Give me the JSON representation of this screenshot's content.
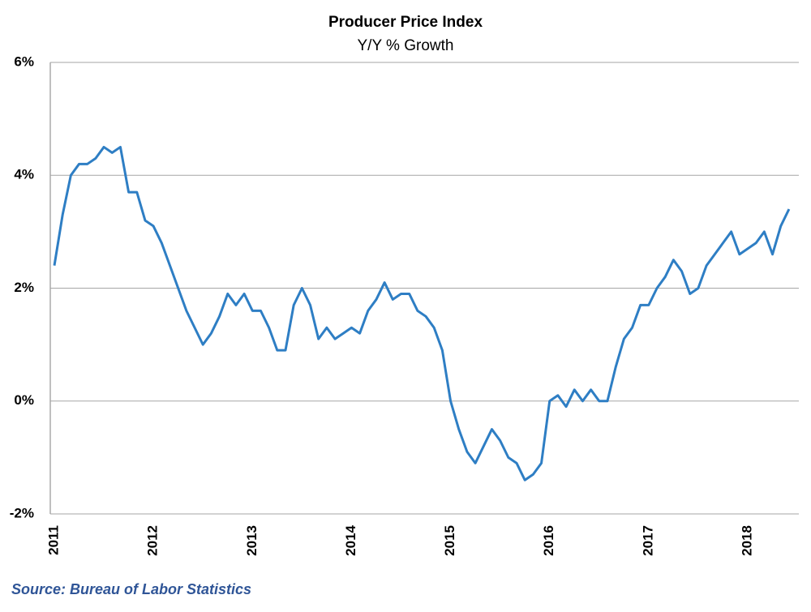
{
  "chart_data": {
    "type": "line",
    "title": "Producer Price Index",
    "subtitle": "Y/Y % Growth",
    "source": "Source: Bureau of Labor Statistics",
    "categories": [
      "2011",
      null,
      null,
      null,
      null,
      null,
      null,
      null,
      null,
      null,
      null,
      null,
      "2012",
      null,
      null,
      null,
      null,
      null,
      null,
      null,
      null,
      null,
      null,
      null,
      "2013",
      null,
      null,
      null,
      null,
      null,
      null,
      null,
      null,
      null,
      null,
      null,
      "2014",
      null,
      null,
      null,
      null,
      null,
      null,
      null,
      null,
      null,
      null,
      null,
      "2015",
      null,
      null,
      null,
      null,
      null,
      null,
      null,
      null,
      null,
      null,
      null,
      "2016",
      null,
      null,
      null,
      null,
      null,
      null,
      null,
      null,
      null,
      null,
      null,
      "2017",
      null,
      null,
      null,
      null,
      null,
      null,
      null,
      null,
      null,
      null,
      null,
      "2018",
      null,
      null,
      null,
      null,
      null
    ],
    "values": [
      2.4,
      3.3,
      4.0,
      4.2,
      4.2,
      4.3,
      4.5,
      4.4,
      4.5,
      3.7,
      3.7,
      3.2,
      3.1,
      2.8,
      2.4,
      2.0,
      1.6,
      1.3,
      1.0,
      1.2,
      1.5,
      1.9,
      1.7,
      1.9,
      1.6,
      1.6,
      1.3,
      0.9,
      0.9,
      1.7,
      2.0,
      1.7,
      1.1,
      1.3,
      1.1,
      1.2,
      1.3,
      1.2,
      1.6,
      1.8,
      2.1,
      1.8,
      1.9,
      1.9,
      1.6,
      1.5,
      1.3,
      0.9,
      0.0,
      -0.5,
      -0.9,
      -1.1,
      -0.8,
      -0.5,
      -0.7,
      -1.0,
      -1.1,
      -1.4,
      -1.3,
      -1.1,
      0.0,
      0.1,
      -0.1,
      0.2,
      0.0,
      0.2,
      0.0,
      0.0,
      0.6,
      1.1,
      1.3,
      1.7,
      1.7,
      2.0,
      2.2,
      2.5,
      2.3,
      1.9,
      2.0,
      2.4,
      2.6,
      2.8,
      3.0,
      2.6,
      2.7,
      2.8,
      3.0,
      2.6,
      3.1,
      3.4
    ],
    "color": "#2e7ec4",
    "ylim": [
      -2,
      6
    ],
    "yticks": [
      {
        "value": -2,
        "label": "-2%"
      },
      {
        "value": 0,
        "label": "0%"
      },
      {
        "value": 2,
        "label": "2%"
      },
      {
        "value": 4,
        "label": "4%"
      },
      {
        "value": 6,
        "label": "6%"
      }
    ],
    "grid": true
  }
}
